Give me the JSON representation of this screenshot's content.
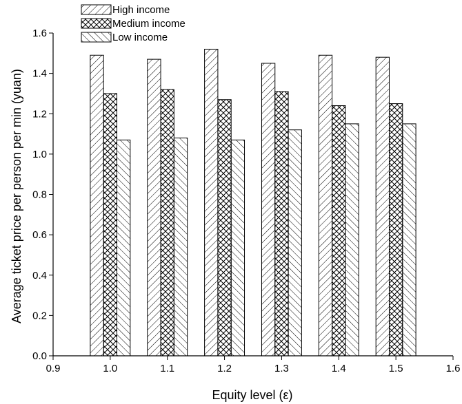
{
  "chart_data": {
    "type": "bar",
    "xlabel": "Equity level (ε)",
    "ylabel": "Average ticket price per person per min (yuan)",
    "categories": [
      1.0,
      1.1,
      1.2,
      1.3,
      1.4,
      1.5
    ],
    "xlim": [
      0.9,
      1.6
    ],
    "ylim": [
      0.0,
      1.6
    ],
    "xticks": [
      "0.9",
      "1.0",
      "1.1",
      "1.2",
      "1.3",
      "1.4",
      "1.5",
      "1.6"
    ],
    "yticks": [
      "0.0",
      "0.2",
      "0.4",
      "0.6",
      "0.8",
      "1.0",
      "1.2",
      "1.4",
      "1.6"
    ],
    "legend_position": "top-left",
    "grid": false,
    "series": [
      {
        "name": "High income",
        "pattern": "diagonal",
        "values": [
          1.49,
          1.47,
          1.52,
          1.45,
          1.49,
          1.48
        ]
      },
      {
        "name": "Medium income",
        "pattern": "crosshatch",
        "values": [
          1.3,
          1.32,
          1.27,
          1.31,
          1.24,
          1.25
        ]
      },
      {
        "name": "Low income",
        "pattern": "back-diagonal",
        "values": [
          1.07,
          1.08,
          1.07,
          1.12,
          1.15,
          1.15
        ]
      }
    ]
  }
}
